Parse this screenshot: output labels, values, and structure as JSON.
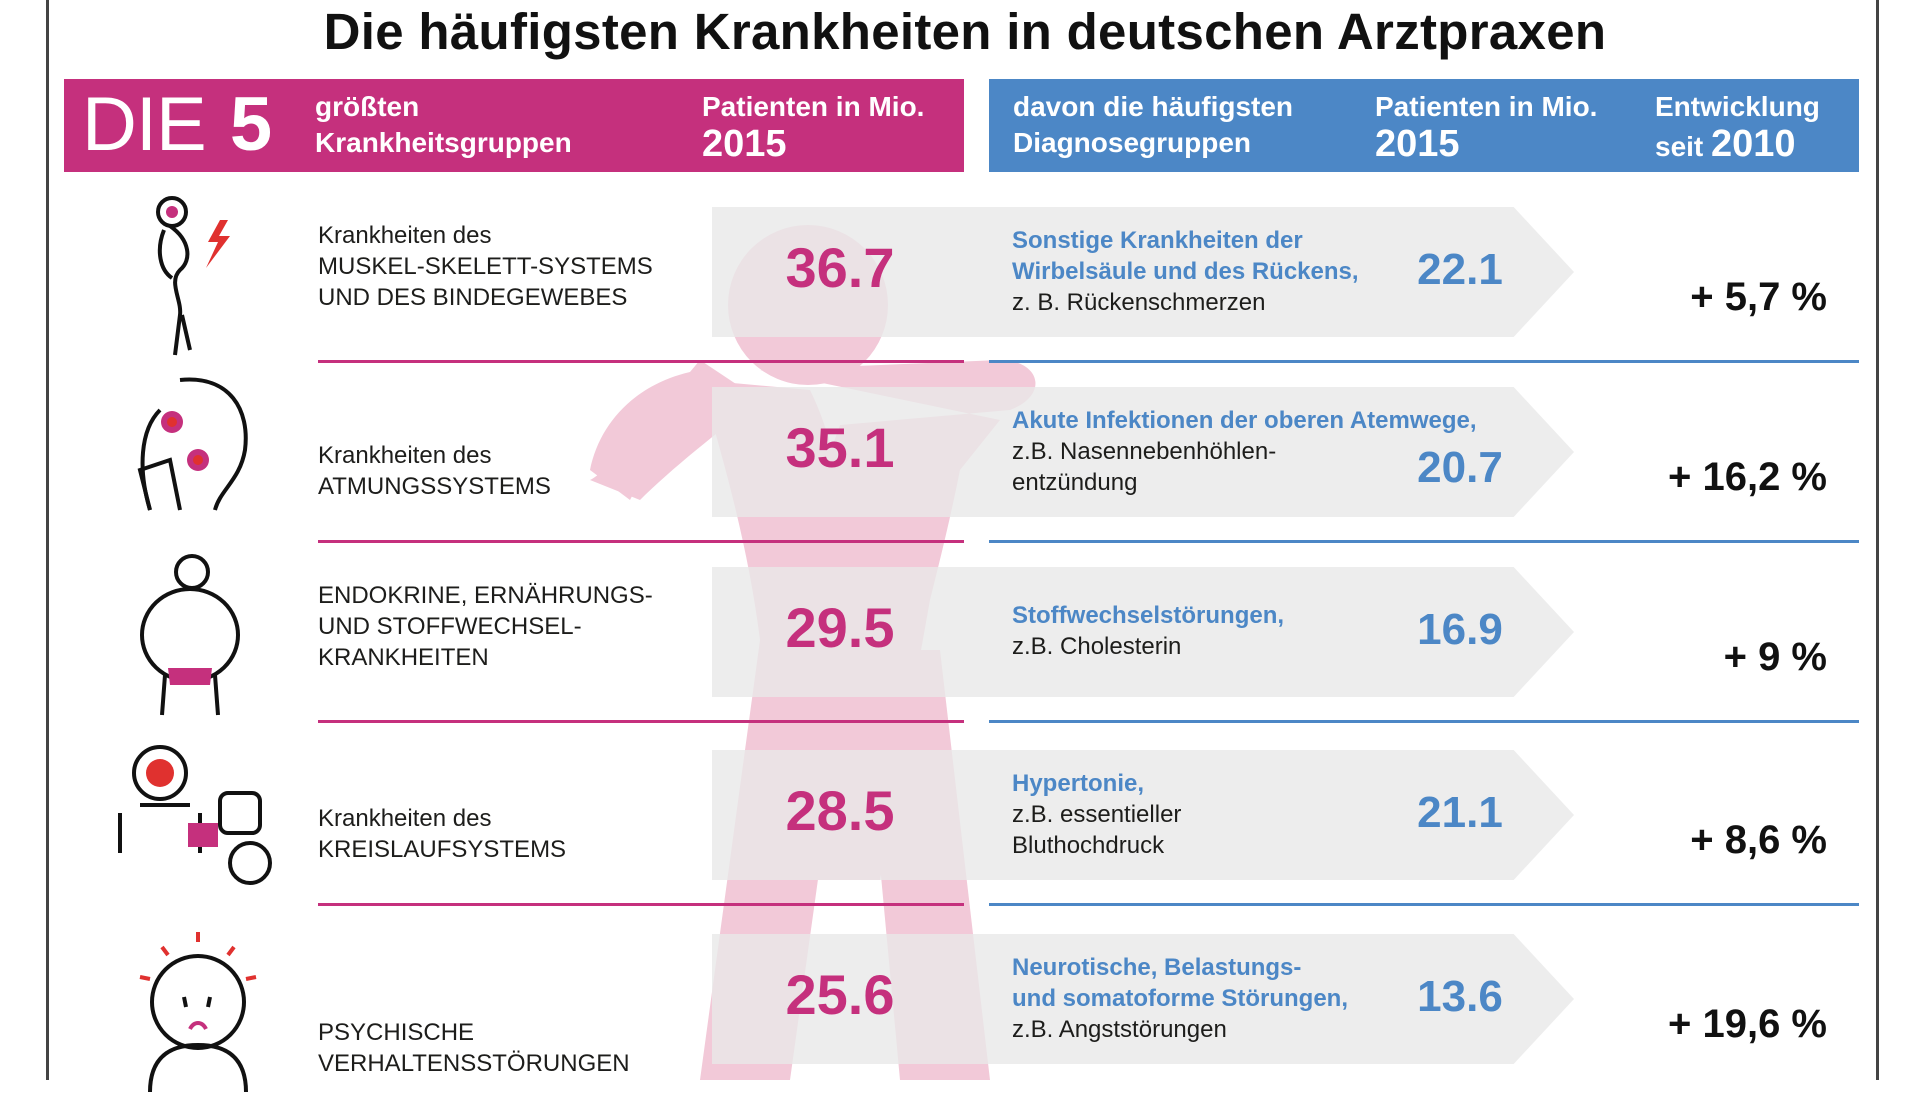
{
  "title": "Die häufigsten Krankheiten in deutschen Arztpraxen",
  "colors": {
    "magenta": "#c5307d",
    "blue": "#4c87c6",
    "band": "#e9e9e9",
    "figure": "#f2c9d8"
  },
  "header": {
    "die": "DIE",
    "five": "5",
    "groups_line1": "größten",
    "groups_line2": "Krankheitsgruppen",
    "patients_line1": "Patienten in Mio.",
    "patients_year": "2015",
    "diag_line1": "davon die häufigsten",
    "diag_line2": "Diagnosegruppen",
    "diag_patients_line1": "Patienten in Mio.",
    "diag_patients_year": "2015",
    "trend_line1": "Entwicklung",
    "trend_line2_prefix": "seit",
    "trend_line2_year": "2010"
  },
  "chart_data": {
    "type": "table",
    "title": "Die häufigsten Krankheiten in deutschen Arztpraxen",
    "columns": [
      "DIE 5 größten Krankheitsgruppen",
      "Patienten in Mio. 2015",
      "davon die häufigsten Diagnosegruppen",
      "Patienten in Mio. 2015",
      "Entwicklung seit 2010"
    ],
    "rows": [
      {
        "icon": "back-pain-icon",
        "group_lines": [
          "Krankheiten des",
          "MUSKEL-SKELETT-SYSTEMS",
          "UND DES BINDEGEWEBES"
        ],
        "patients": "36.7",
        "diag_name_lines": [
          "Sonstige Krankheiten der",
          "Wirbelsäule und des Rückens,"
        ],
        "diag_example_lines": [
          "z. B. Rückenschmerzen"
        ],
        "diag_patients": "22.1",
        "trend": "+ 5,7 %"
      },
      {
        "icon": "sinus-pain-icon",
        "group_lines": [
          "Krankheiten des",
          "ATMUNGSSYSTEMS"
        ],
        "patients": "35.1",
        "diag_name_lines": [
          "Akute Infektionen der oberen Atemwege,"
        ],
        "diag_example_lines": [
          "z.B. Nasennebenhöhlen-",
          "entzündung"
        ],
        "diag_patients": "20.7",
        "trend": "+ 16,2 %"
      },
      {
        "icon": "overweight-person-icon",
        "group_lines": [
          "ENDOKRINE, ERNÄHRUNGS-",
          "UND STOFFWECHSEL-",
          "KRANKHEITEN"
        ],
        "patients": "29.5",
        "diag_name_lines": [
          "Stoffwechselstörungen,"
        ],
        "diag_example_lines": [
          "z.B. Cholesterin"
        ],
        "diag_patients": "16.9",
        "trend": "+ 9 %"
      },
      {
        "icon": "blood-pressure-icon",
        "group_lines": [
          "Krankheiten des",
          "KREISLAUFSYSTEMS"
        ],
        "patients": "28.5",
        "diag_name_lines": [
          "Hypertonie,"
        ],
        "diag_example_lines": [
          "z.B. essentieller",
          "Bluthochdruck"
        ],
        "diag_patients": "21.1",
        "trend": "+ 8,6 %"
      },
      {
        "icon": "anxious-face-icon",
        "group_lines": [
          "PSYCHISCHE",
          "VERHALTENSSTÖRUNGEN"
        ],
        "patients": "25.6",
        "diag_name_lines": [
          "Neurotische, Belastungs-",
          "und somatoforme Störungen,"
        ],
        "diag_example_lines": [
          "z.B. Angststörungen"
        ],
        "diag_patients": "13.6",
        "trend": "+ 19,6 %"
      }
    ]
  }
}
